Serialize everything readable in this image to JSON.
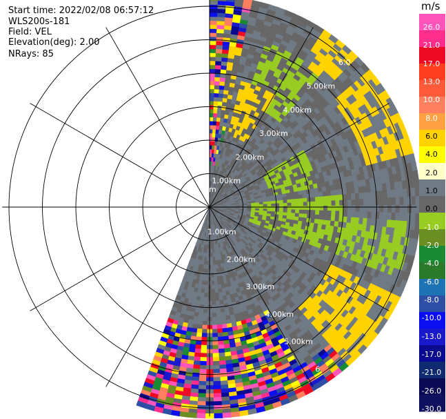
{
  "header": {
    "start_time": "Start time: 2022/02/08 06:57:12",
    "instrument": "WLS200s-181",
    "field": "Field: VEL",
    "elevation": "Elevation(deg): 2.00",
    "nrays": "NRays: 85"
  },
  "colorbar": {
    "unit": "m/s",
    "colors": [
      "#ff55bb",
      "#ff2e8c",
      "#ee0a24",
      "#ff3d1f",
      "#ff5a3a",
      "#ff7f5f",
      "#ffa043",
      "#ffd300",
      "#ffff00",
      "#ffffc9",
      "#707a85",
      "#676767",
      "#99cc22",
      "#6b8e23",
      "#1a8a35",
      "#2b7a2b",
      "#1e73b5",
      "#2f4fa6",
      "#0b0ff0",
      "#1a1acc",
      "#0a0a90",
      "#0f2a70",
      "#0a0a55",
      "#101060"
    ],
    "tick_labels": [
      "26.0",
      "21.0",
      "17.0",
      "13.0",
      "10.0",
      "8.0",
      "6.0",
      "4.0",
      "2.0",
      "1.0",
      "0.0",
      "-1.0",
      "-2.0",
      "-4.0",
      "-6.0",
      "-8.0",
      "-10.0",
      "-13.0",
      "-17.0",
      "-21.0",
      "-26.0",
      "-30.0"
    ]
  },
  "chart_data": {
    "type": "heatmap",
    "projection": "polar-ppi",
    "field": "VEL",
    "units": "m/s",
    "azimuth_range_deg": [
      0,
      200
    ],
    "range_rings_km": [
      1,
      2,
      3,
      4,
      5,
      6
    ],
    "ring_labels_east": [
      "1.00km",
      "2.00km",
      "3.00km",
      "4.00km",
      "5.00km",
      "6.0"
    ],
    "ring_labels_west": [
      "1.00km",
      "2.00km",
      "3.00km",
      "4.00km",
      "5.00km",
      "6"
    ],
    "ring_label_fragment": "m",
    "max_range_km": 6.2,
    "sector_fields": [
      {
        "az": [
          0,
          15
        ],
        "range_km": [
          0,
          6.2
        ],
        "velocity": "mixed-noise"
      },
      {
        "az": [
          15,
          45
        ],
        "range_km": [
          0,
          6.2
        ],
        "velocity": "-1.0 to 0.0 with 2.0 patches"
      },
      {
        "az": [
          45,
          80
        ],
        "range_km": [
          0,
          6.2
        ],
        "velocity": "0.0 to 1.0 with -2.0 band"
      },
      {
        "az": [
          80,
          115
        ],
        "range_km": [
          0,
          6.2
        ],
        "velocity": "-2.0 band"
      },
      {
        "az": [
          115,
          150
        ],
        "range_km": [
          0,
          5.5
        ],
        "velocity": "0.0 with 2.0 patch"
      },
      {
        "az": [
          150,
          200
        ],
        "range_km": [
          3.5,
          6.2
        ],
        "velocity": "mixed-noise"
      }
    ],
    "colorbar_range": [
      -30.0,
      26.0
    ],
    "grid": true
  }
}
